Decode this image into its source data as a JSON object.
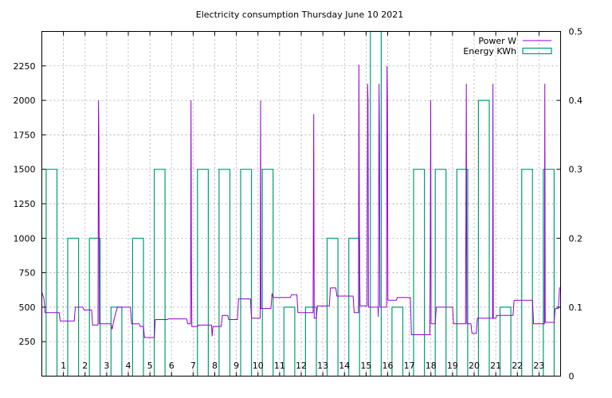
{
  "chart_data": {
    "type": "line",
    "title": "Electricity consumption Thursday June 10 2021",
    "xlabel": "",
    "ylabel": "",
    "grid": true,
    "legend_position": "top-right",
    "x_range": [
      0,
      24
    ],
    "x_ticks": [
      1,
      2,
      3,
      4,
      5,
      6,
      7,
      8,
      9,
      10,
      11,
      12,
      13,
      14,
      15,
      16,
      17,
      18,
      19,
      20,
      21,
      22,
      23
    ],
    "x_tick_labels": [
      "1",
      "2",
      "3",
      "4",
      "5",
      "6",
      "7",
      "8",
      "9",
      "10",
      "11",
      "12",
      "13",
      "14",
      "15",
      "16",
      "17",
      "18",
      "19",
      "20",
      "21",
      "22",
      "23"
    ],
    "y_left_range": [
      0,
      2500
    ],
    "y_left_ticks": [
      250,
      500,
      750,
      1000,
      1250,
      1500,
      1750,
      2000,
      2250
    ],
    "y_left_tick_labels": [
      "250",
      "500",
      "750",
      "1000",
      "1250",
      "1500",
      "1750",
      "2000",
      "2250"
    ],
    "y_right_range": [
      0,
      0.5
    ],
    "y_right_ticks": [
      0,
      0.1,
      0.2,
      0.3,
      0.4,
      0.5
    ],
    "y_right_tick_labels": [
      "0",
      "0.1",
      "0.2",
      "0.3",
      "0.4",
      "0.5"
    ],
    "series": [
      {
        "name": "Power W",
        "axis": "left",
        "color": "#9400d3",
        "style": "line",
        "points": [
          [
            0.0,
            610
          ],
          [
            0.1,
            560
          ],
          [
            0.15,
            460
          ],
          [
            0.8,
            460
          ],
          [
            0.85,
            400
          ],
          [
            1.5,
            400
          ],
          [
            1.55,
            500
          ],
          [
            1.9,
            500
          ],
          [
            1.95,
            480
          ],
          [
            2.3,
            480
          ],
          [
            2.35,
            370
          ],
          [
            2.6,
            370
          ],
          [
            2.62,
            2000
          ],
          [
            2.64,
            1720
          ],
          [
            2.66,
            380
          ],
          [
            3.2,
            380
          ],
          [
            3.25,
            340
          ],
          [
            3.35,
            420
          ],
          [
            3.5,
            500
          ],
          [
            4.1,
            500
          ],
          [
            4.15,
            380
          ],
          [
            4.5,
            380
          ],
          [
            4.55,
            360
          ],
          [
            4.7,
            360
          ],
          [
            4.75,
            280
          ],
          [
            5.2,
            280
          ],
          [
            5.25,
            410
          ],
          [
            5.8,
            410
          ],
          [
            5.85,
            415
          ],
          [
            6.7,
            415
          ],
          [
            6.75,
            380
          ],
          [
            6.88,
            380
          ],
          [
            6.9,
            2000
          ],
          [
            6.92,
            820
          ],
          [
            6.94,
            360
          ],
          [
            7.2,
            360
          ],
          [
            7.25,
            370
          ],
          [
            7.85,
            370
          ],
          [
            7.88,
            290
          ],
          [
            7.92,
            360
          ],
          [
            8.3,
            360
          ],
          [
            8.35,
            440
          ],
          [
            8.6,
            440
          ],
          [
            8.65,
            410
          ],
          [
            9.05,
            410
          ],
          [
            9.1,
            560
          ],
          [
            9.65,
            560
          ],
          [
            9.7,
            420
          ],
          [
            10.1,
            420
          ],
          [
            10.12,
            2000
          ],
          [
            10.14,
            490
          ],
          [
            10.6,
            490
          ],
          [
            10.65,
            600
          ],
          [
            10.7,
            570
          ],
          [
            11.5,
            570
          ],
          [
            11.55,
            590
          ],
          [
            11.8,
            590
          ],
          [
            11.85,
            460
          ],
          [
            12.55,
            460
          ],
          [
            12.58,
            1900
          ],
          [
            12.6,
            420
          ],
          [
            12.7,
            420
          ],
          [
            12.75,
            510
          ],
          [
            13.3,
            510
          ],
          [
            13.35,
            640
          ],
          [
            13.6,
            640
          ],
          [
            13.65,
            580
          ],
          [
            14.4,
            580
          ],
          [
            14.45,
            460
          ],
          [
            14.65,
            460
          ],
          [
            14.67,
            2260
          ],
          [
            14.69,
            980
          ],
          [
            14.72,
            510
          ],
          [
            15.05,
            510
          ],
          [
            15.07,
            2120
          ],
          [
            15.09,
            2000
          ],
          [
            15.11,
            500
          ],
          [
            15.55,
            500
          ],
          [
            15.57,
            430
          ],
          [
            15.6,
            2120
          ],
          [
            15.62,
            1720
          ],
          [
            15.64,
            500
          ],
          [
            15.95,
            500
          ],
          [
            15.97,
            2250
          ],
          [
            15.99,
            2000
          ],
          [
            16.01,
            550
          ],
          [
            16.4,
            550
          ],
          [
            16.45,
            570
          ],
          [
            17.05,
            570
          ],
          [
            17.1,
            300
          ],
          [
            17.95,
            300
          ],
          [
            17.97,
            860
          ],
          [
            17.99,
            2000
          ],
          [
            18.01,
            380
          ],
          [
            18.2,
            380
          ],
          [
            18.25,
            500
          ],
          [
            19.0,
            500
          ],
          [
            19.05,
            380
          ],
          [
            19.6,
            380
          ],
          [
            19.62,
            1200
          ],
          [
            19.64,
            2120
          ],
          [
            19.66,
            380
          ],
          [
            19.85,
            380
          ],
          [
            19.9,
            310
          ],
          [
            20.1,
            310
          ],
          [
            20.15,
            420
          ],
          [
            20.85,
            420
          ],
          [
            20.87,
            2120
          ],
          [
            20.89,
            420
          ],
          [
            20.95,
            420
          ],
          [
            21.0,
            420
          ],
          [
            21.05,
            440
          ],
          [
            21.8,
            440
          ],
          [
            21.85,
            550
          ],
          [
            22.7,
            550
          ],
          [
            22.75,
            380
          ],
          [
            23.25,
            380
          ],
          [
            23.27,
            2120
          ],
          [
            23.29,
            390
          ],
          [
            23.7,
            390
          ],
          [
            23.75,
            490
          ],
          [
            23.9,
            490
          ],
          [
            23.95,
            640
          ],
          [
            24.0,
            640
          ]
        ]
      },
      {
        "name": "Energy KWh",
        "axis": "right",
        "color": "#009e73",
        "style": "histeps",
        "values": [
          0.3,
          0.2,
          0.2,
          0.1,
          0.2,
          0.3,
          0.0,
          0.3,
          0.3,
          0.3,
          0.3,
          0.1,
          0.1,
          0.2,
          0.2,
          0.5,
          0.1,
          0.3,
          0.3,
          0.3,
          0.4,
          0.1,
          0.3,
          0.3
        ]
      }
    ]
  }
}
